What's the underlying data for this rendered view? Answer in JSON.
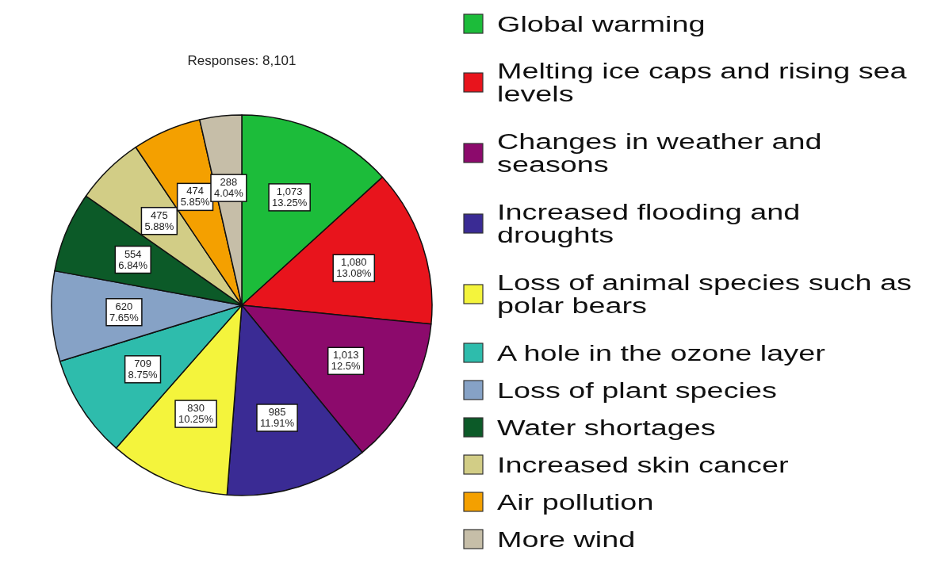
{
  "chart_data": {
    "type": "pie",
    "title": "Responses: 8,101",
    "categories": [
      "Global warming",
      "Melting ice caps and rising sea levels",
      "Changes in weather and seasons",
      "Increased flooding and droughts",
      "Loss of animal species such as polar bears",
      "A hole in the ozone layer",
      "Loss of plant species",
      "Water shortages",
      "Increased skin cancer",
      "Air pollution",
      "More wind"
    ],
    "values": [
      1073,
      1080,
      1013,
      985,
      830,
      709,
      620,
      554,
      475,
      474,
      288
    ],
    "colors": [
      "#1cbc3a",
      "#e8141c",
      "#8c0a6c",
      "#3a2b94",
      "#f4f43c",
      "#2ebcac",
      "#86a2c6",
      "#0c5a28",
      "#d2cd86",
      "#f4a000",
      "#c6bea8"
    ],
    "value_labels": [
      "1,073\n13.25%",
      "1,080\n13.08%",
      "1,013\n12.5%",
      "985\n11.91%",
      "830\n10.25%",
      "709\n8.75%",
      "620\n7.65%",
      "554\n6.84%",
      "475\n5.88%",
      "474\n5.85%",
      "288\n4.04%"
    ],
    "legend": "right"
  }
}
